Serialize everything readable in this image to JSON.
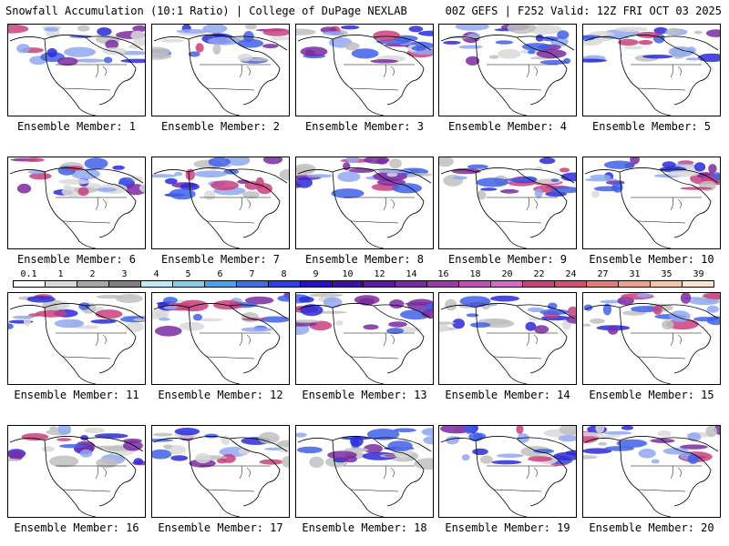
{
  "header": {
    "title_left": "Snowfall Accumulation (10:1 Ratio) | College of DuPage NEXLAB",
    "title_right": "00Z GEFS | F252 Valid: 12Z FRI OCT 03 2025"
  },
  "members": [
    {
      "label": "Ensemble Member: 1"
    },
    {
      "label": "Ensemble Member: 2"
    },
    {
      "label": "Ensemble Member: 3"
    },
    {
      "label": "Ensemble Member: 4"
    },
    {
      "label": "Ensemble Member: 5"
    },
    {
      "label": "Ensemble Member: 6"
    },
    {
      "label": "Ensemble Member: 7"
    },
    {
      "label": "Ensemble Member: 8"
    },
    {
      "label": "Ensemble Member: 9"
    },
    {
      "label": "Ensemble Member: 10"
    },
    {
      "label": "Ensemble Member: 11"
    },
    {
      "label": "Ensemble Member: 12"
    },
    {
      "label": "Ensemble Member: 13"
    },
    {
      "label": "Ensemble Member: 14"
    },
    {
      "label": "Ensemble Member: 15"
    },
    {
      "label": "Ensemble Member: 16"
    },
    {
      "label": "Ensemble Member: 17"
    },
    {
      "label": "Ensemble Member: 18"
    },
    {
      "label": "Ensemble Member: 19"
    },
    {
      "label": "Ensemble Member: 20"
    }
  ],
  "colorbar": {
    "labels": [
      "0.1",
      "1",
      "2",
      "3",
      "4",
      "5",
      "6",
      "7",
      "8",
      "9",
      "10",
      "12",
      "14",
      "16",
      "18",
      "20",
      "22",
      "24",
      "27",
      "31",
      "35",
      "39"
    ],
    "colors": [
      "#ffffff",
      "#d9d9d9",
      "#a6a6a6",
      "#7f7f7f",
      "#bfeaf5",
      "#87cde8",
      "#4f9fe6",
      "#3c6fe0",
      "#2e3fe0",
      "#2a10c8",
      "#3f0fa5",
      "#5a1a9e",
      "#7a2aa0",
      "#9a3aa8",
      "#bf50b8",
      "#d46ac8",
      "#c8407e",
      "#d0506e",
      "#e07f7a",
      "#eca08a",
      "#f5c6a6",
      "#fbe4cc"
    ]
  }
}
